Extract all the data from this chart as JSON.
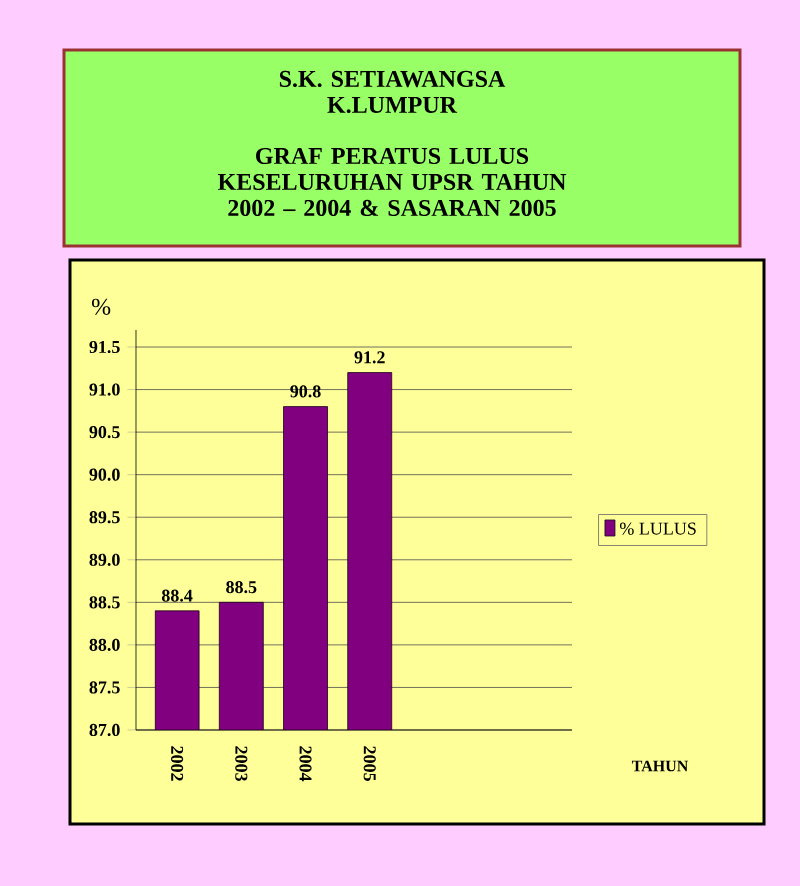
{
  "chart_data": {
    "type": "bar",
    "title": "S.K.  SETIAWANGSA K.LUMPUR",
    "subtitle": "GRAF PERATUS LULUS KESELURUHAN UPSR TAHUN 2002 – 2004 & SASARAN 2005",
    "annotations": [
      "TAHUN"
    ],
    "ylabel": "%",
    "categories": [
      "2002",
      "2003",
      "2004",
      "2005"
    ],
    "series": [
      {
        "name": "% LULUS",
        "color": "#800080",
        "values": [
          88.4,
          88.5,
          90.8,
          91.2
        ]
      }
    ],
    "ylim": [
      87,
      91.7
    ],
    "yticks": [
      {
        "value": 87,
        "label": "87.0"
      },
      87.5,
      {
        "value": 88,
        "label": "88.0"
      },
      88.5,
      {
        "value": 89,
        "label": "89.0"
      },
      89.5,
      {
        "value": 90,
        "label": "90.0"
      },
      90.5,
      {
        "value": 91,
        "label": "91.0"
      },
      91.5
    ],
    "grid": "y",
    "legend": "right",
    "data_labels": true
  }
}
